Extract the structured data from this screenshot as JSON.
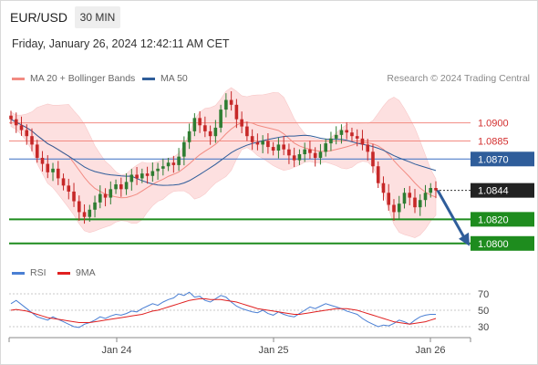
{
  "header": {
    "pair": "EUR/USD",
    "timeframe": "30 MIN"
  },
  "datetime": "Friday, January 26, 2024 12:42:11 AM CET",
  "legend": [
    {
      "label": "MA 20 + Bollinger Bands",
      "color": "#f28b82"
    },
    {
      "label": "MA 50",
      "color": "#2f5d9a"
    }
  ],
  "credit": "Research © 2024 Trading Central",
  "price_levels": [
    {
      "label": "1.0900",
      "style": "line-red"
    },
    {
      "label": "1.0885",
      "style": "line-red"
    },
    {
      "label": "1.0870",
      "style": "tag-blue"
    },
    {
      "label": "1.0844",
      "style": "tag-black"
    },
    {
      "label": "1.0820",
      "style": "tag-green"
    },
    {
      "label": "1.0800",
      "style": "tag-green"
    }
  ],
  "rsi_legend": [
    {
      "label": "RSI",
      "color": "#4a7fd4"
    },
    {
      "label": "9MA",
      "color": "#e02020"
    }
  ],
  "rsi_ticks": [
    "70",
    "50",
    "30"
  ],
  "x_ticks": [
    "Jan 24",
    "Jan 25",
    "Jan 26"
  ],
  "colors": {
    "up": "#2e7d32",
    "down": "#c62828",
    "support": "#1e8c1e",
    "arrow": "#2f5d9a"
  },
  "chart_data": {
    "type": "candlestick",
    "y_range": [
      1.079,
      1.093
    ],
    "rsi_range": [
      20,
      80
    ],
    "closes": [
      1.0903,
      1.0898,
      1.0894,
      1.0889,
      1.0882,
      1.0871,
      1.0866,
      1.0859,
      1.0862,
      1.0854,
      1.0848,
      1.0843,
      1.0835,
      1.0826,
      1.0822,
      1.0828,
      1.0834,
      1.0841,
      1.0838,
      1.0845,
      1.0849,
      1.0845,
      1.0851,
      1.0857,
      1.0854,
      1.0858,
      1.0856,
      1.086,
      1.0862,
      1.0864,
      1.0867,
      1.0865,
      1.0872,
      1.0884,
      1.0893,
      1.0904,
      1.0898,
      1.0893,
      1.0889,
      1.0896,
      1.0911,
      1.0919,
      1.0915,
      1.0903,
      1.0897,
      1.0889,
      1.0884,
      1.0882,
      1.0885,
      1.088,
      1.0877,
      1.0882,
      1.0878,
      1.0873,
      1.0869,
      1.0874,
      1.0878,
      1.0875,
      1.0871,
      1.0876,
      1.0883,
      1.0887,
      1.089,
      1.0894,
      1.0892,
      1.0889,
      1.0887,
      1.0882,
      1.0876,
      1.0864,
      1.085,
      1.0842,
      1.0832,
      1.0826,
      1.0833,
      1.0842,
      1.0838,
      1.083,
      1.0836,
      1.0842,
      1.0846,
      1.0844
    ],
    "rsi": [
      58,
      62,
      57,
      52,
      47,
      42,
      40,
      38,
      42,
      39,
      36,
      33,
      30,
      29,
      33,
      35,
      38,
      42,
      40,
      43,
      45,
      44,
      46,
      49,
      48,
      52,
      55,
      58,
      56,
      60,
      63,
      65,
      70,
      68,
      72,
      66,
      67,
      62,
      60,
      64,
      68,
      66,
      60,
      55,
      52,
      50,
      48,
      47,
      50,
      46,
      44,
      48,
      45,
      43,
      42,
      46,
      50,
      54,
      52,
      55,
      58,
      56,
      54,
      52,
      49,
      47,
      45,
      40,
      36,
      33,
      30,
      32,
      31,
      34,
      38,
      36,
      33,
      38,
      42,
      44,
      45,
      45
    ],
    "rsi_ma": [
      50,
      51,
      50,
      49,
      47,
      45,
      43,
      41,
      40,
      39,
      38,
      37,
      36,
      35,
      35,
      35,
      36,
      37,
      38,
      39,
      40,
      41,
      42,
      43,
      44,
      45,
      47,
      49,
      50,
      52,
      54,
      56,
      58,
      60,
      62,
      63,
      64,
      64,
      63,
      63,
      63,
      62,
      61,
      60,
      58,
      56,
      54,
      52,
      51,
      50,
      49,
      48,
      47,
      46,
      45,
      45,
      46,
      47,
      48,
      49,
      50,
      51,
      52,
      52,
      52,
      51,
      50,
      48,
      46,
      44,
      42,
      40,
      38,
      36,
      35,
      34,
      33,
      34,
      35,
      36,
      38,
      40
    ]
  }
}
